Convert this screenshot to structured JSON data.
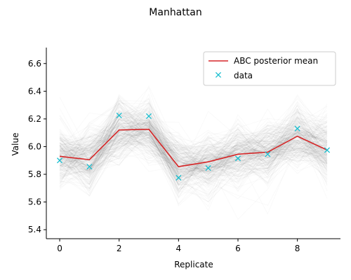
{
  "chart_data": {
    "type": "line",
    "title": "Manhattan",
    "xlabel": "Replicate",
    "ylabel": "Value",
    "xlim": [
      -0.45,
      9.45
    ],
    "ylim": [
      5.335,
      6.715
    ],
    "x": [
      0,
      1,
      2,
      3,
      4,
      5,
      6,
      7,
      8,
      9
    ],
    "xticks": [
      "0",
      "2",
      "4",
      "6",
      "8"
    ],
    "yticks": [
      "5.4",
      "5.6",
      "5.8",
      "6.0",
      "6.2",
      "6.4",
      "6.6"
    ],
    "grid": false,
    "legend_position": "top-right",
    "series": [
      {
        "name": "ABC posterior mean",
        "kind": "line",
        "color": "#d62728",
        "values": [
          5.93,
          5.905,
          6.12,
          6.125,
          5.855,
          5.89,
          5.945,
          5.96,
          6.075,
          5.975
        ]
      },
      {
        "name": "data",
        "kind": "scatter",
        "marker": "x",
        "color": "#17becf",
        "values": [
          5.9,
          5.855,
          6.225,
          6.22,
          5.775,
          5.845,
          5.915,
          5.945,
          6.13,
          5.975
        ]
      }
    ],
    "posterior_band": {
      "color": "#000000",
      "description_visible": false,
      "spread": 0.11
    }
  }
}
